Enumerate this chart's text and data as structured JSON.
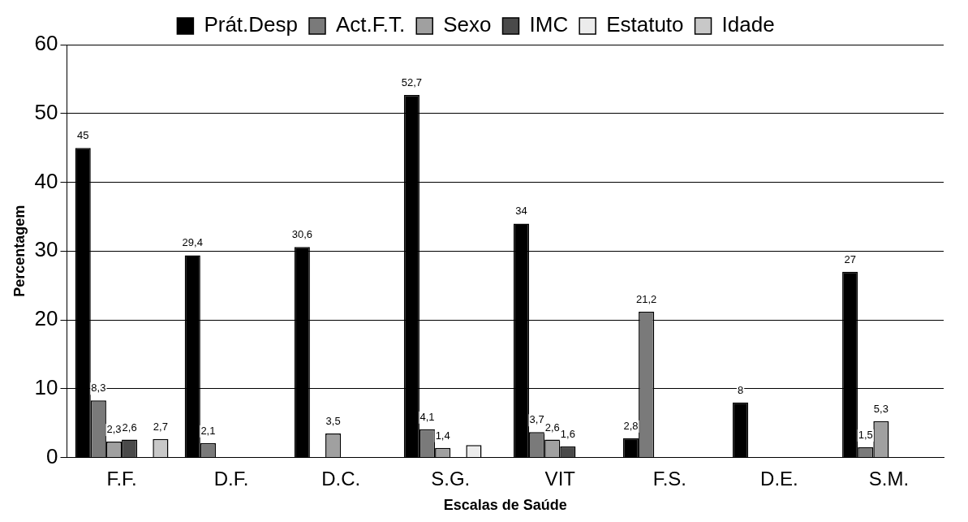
{
  "chart_data": {
    "type": "bar",
    "xlabel": "Escalas de Saúde",
    "ylabel": "Percentagem",
    "categories": [
      "F.F.",
      "D.F.",
      "D.C.",
      "S.G.",
      "VIT",
      "F.S.",
      "D.E.",
      "S.M."
    ],
    "series": [
      {
        "name": "Prát.Desp",
        "color": "#000000",
        "values": [
          45,
          29.4,
          30.6,
          52.7,
          34,
          2.8,
          8,
          27
        ],
        "value_labels": [
          "45",
          "29,4",
          "30,6",
          "52,7",
          "34",
          "2,8",
          "8",
          "27"
        ]
      },
      {
        "name": "Act.F.T.",
        "color": "#7a7a7a",
        "values": [
          8.3,
          2.1,
          null,
          4.1,
          3.7,
          21.2,
          null,
          1.5
        ],
        "value_labels": [
          "8,3",
          "2,1",
          null,
          "4,1",
          "3,7",
          "21,2",
          null,
          "1,5"
        ]
      },
      {
        "name": "Sexo",
        "color": "#a0a0a0",
        "values": [
          2.3,
          null,
          3.5,
          1.4,
          2.6,
          null,
          null,
          5.3
        ],
        "value_labels": [
          "2,3",
          null,
          "3,5",
          "1,4",
          "2,6",
          null,
          null,
          "5,3"
        ]
      },
      {
        "name": "IMC",
        "color": "#4a4a4a",
        "values": [
          2.6,
          null,
          null,
          null,
          1.6,
          null,
          null,
          null
        ],
        "value_labels": [
          "2,6",
          null,
          null,
          null,
          "1,6",
          null,
          null,
          null
        ]
      },
      {
        "name": "Estatuto",
        "color": "#ececec",
        "values": [
          null,
          null,
          null,
          1.8,
          null,
          null,
          null,
          null
        ],
        "value_labels": [
          null,
          null,
          null,
          null,
          null,
          null,
          null,
          null
        ]
      },
      {
        "name": "Idade",
        "color": "#c8c8c8",
        "values": [
          2.7,
          null,
          null,
          null,
          null,
          null,
          null,
          null
        ],
        "value_labels": [
          "2,7",
          null,
          null,
          null,
          null,
          null,
          null,
          null
        ]
      }
    ],
    "ylim": [
      0,
      60
    ],
    "yticks": [
      0,
      10,
      20,
      30,
      40,
      50,
      60
    ],
    "grid": "y",
    "legend": "top"
  }
}
